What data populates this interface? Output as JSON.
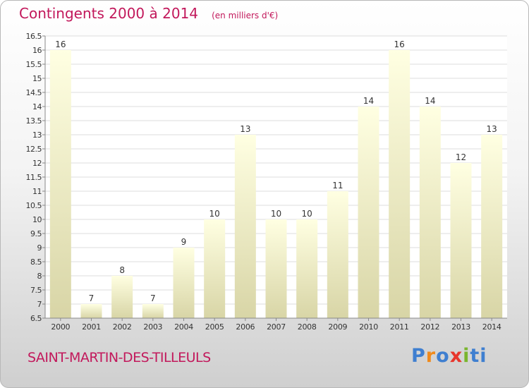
{
  "chart_data": {
    "type": "bar",
    "title": "Contingents 2000 à 2014",
    "subtitle": "(en milliers d'€)",
    "categories": [
      "2000",
      "2001",
      "2002",
      "2003",
      "2004",
      "2005",
      "2006",
      "2007",
      "2008",
      "2009",
      "2010",
      "2011",
      "2012",
      "2013",
      "2014"
    ],
    "values": [
      16,
      7,
      8,
      7,
      9,
      10,
      13,
      10,
      10,
      11,
      14,
      16,
      14,
      12,
      13
    ],
    "ylim": [
      6.5,
      16.5
    ],
    "yticks": [
      "6.5",
      "7",
      "7.5",
      "8",
      "8.5",
      "9",
      "9.5",
      "10",
      "10.5",
      "11",
      "11.5",
      "12",
      "12.5",
      "13",
      "13.5",
      "14",
      "14.5",
      "15",
      "15.5",
      "16",
      "16.5"
    ],
    "grid": true,
    "xlabel": "",
    "ylabel": ""
  },
  "place_name": "SAINT-MARTIN-DES-TILLEULS",
  "logo_text": "Proxiti",
  "colors": {
    "accent": "#c2185b",
    "bar_light": "#ffffe0",
    "bar_dark": "#d9d6a8"
  }
}
